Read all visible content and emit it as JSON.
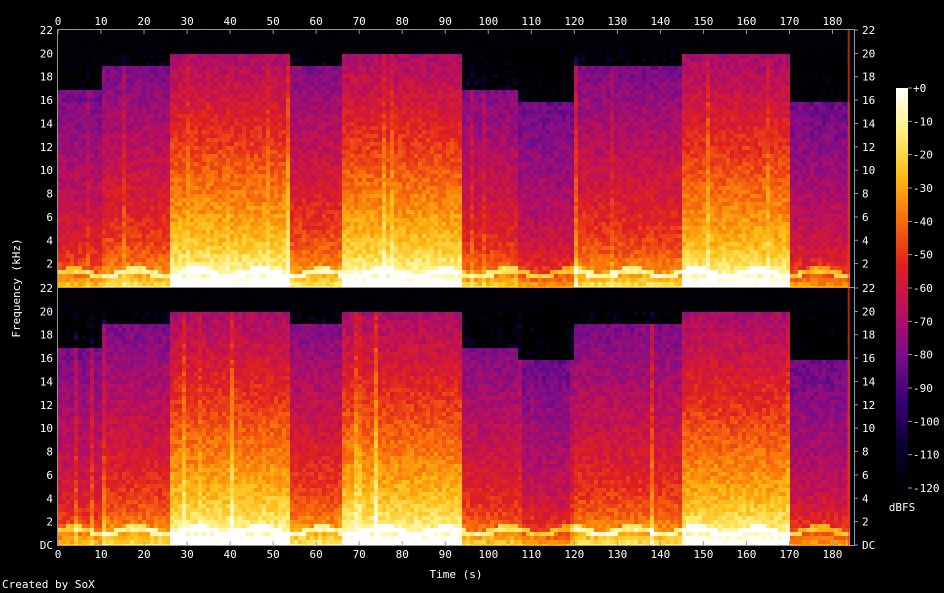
{
  "chart_data": {
    "type": "heatmap",
    "xlabel": "Time (s)",
    "ylabel": "Frequency (kHz)",
    "colorbar_label": "dBFS",
    "xlim": [
      0,
      185
    ],
    "x_ticks": [
      0,
      10,
      20,
      30,
      40,
      50,
      60,
      70,
      80,
      90,
      100,
      110,
      120,
      130,
      140,
      150,
      160,
      170,
      180
    ],
    "ylim": [
      0,
      22
    ],
    "y_ticks_top": [
      "2",
      "4",
      "6",
      "8",
      "10",
      "12",
      "14",
      "16",
      "18",
      "20",
      "22"
    ],
    "y_ticks_bottom": [
      "DC",
      "2",
      "4",
      "6",
      "8",
      "10",
      "12",
      "14",
      "16",
      "18",
      "20",
      "22"
    ],
    "colorbar_ticks": [
      "+0",
      "-10",
      "-20",
      "-30",
      "-40",
      "-50",
      "-60",
      "-70",
      "-80",
      "-90",
      "-100",
      "-110",
      "-120"
    ],
    "colorbar_range": [
      -120,
      0
    ],
    "channels": 2,
    "audio_end_s": 184,
    "lowpass_cutoff_khz": 20,
    "segments": [
      {
        "start": 0,
        "end": 10,
        "energy": 0.55,
        "cutoff_khz": 17
      },
      {
        "start": 10,
        "end": 26,
        "energy": 0.62,
        "cutoff_khz": 19
      },
      {
        "start": 26,
        "end": 54,
        "energy": 0.82,
        "cutoff_khz": 20
      },
      {
        "start": 54,
        "end": 66,
        "energy": 0.64,
        "cutoff_khz": 19
      },
      {
        "start": 66,
        "end": 94,
        "energy": 0.82,
        "cutoff_khz": 20
      },
      {
        "start": 94,
        "end": 107,
        "energy": 0.58,
        "cutoff_khz": 17
      },
      {
        "start": 107,
        "end": 120,
        "energy": 0.5,
        "cutoff_khz": 16
      },
      {
        "start": 120,
        "end": 145,
        "energy": 0.62,
        "cutoff_khz": 19
      },
      {
        "start": 145,
        "end": 170,
        "energy": 0.8,
        "cutoff_khz": 20
      },
      {
        "start": 170,
        "end": 184,
        "energy": 0.5,
        "cutoff_khz": 16
      }
    ],
    "palette": [
      "#000000",
      "#0d0030",
      "#3a007a",
      "#7a0d8a",
      "#b80f5f",
      "#e0201f",
      "#f86a0a",
      "#fdba12",
      "#fff07a",
      "#ffffff"
    ]
  },
  "footer": {
    "credit": "Created by SoX"
  }
}
